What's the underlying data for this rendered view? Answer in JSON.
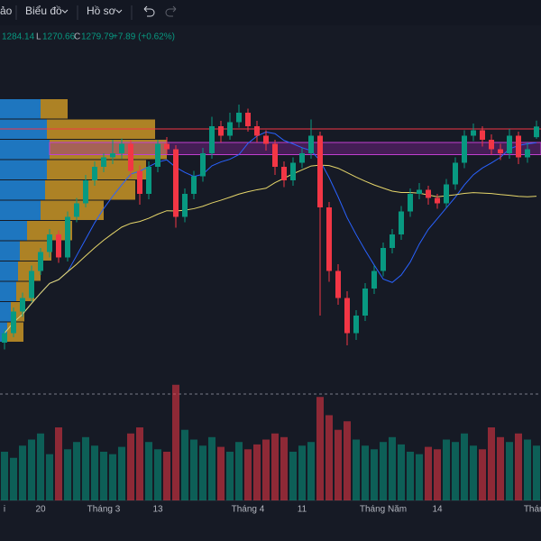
{
  "toolbar": {
    "items": [
      "ảo",
      "Biểu đồ",
      "Hồ sơ"
    ]
  },
  "header": {
    "h": "1284.14",
    "l_label": "L",
    "l": "1270.66",
    "c_label": "C",
    "c": "1279.79",
    "change": "+7.89 (+0.62%)"
  },
  "chart_data": {
    "type": "candlestick",
    "categories": [
      "i",
      null,
      null,
      null,
      "20",
      null,
      null,
      null,
      null,
      null,
      null,
      "Tháng 3",
      null,
      null,
      null,
      null,
      null,
      "13",
      null,
      null,
      null,
      null,
      null,
      null,
      null,
      null,
      null,
      "Tháng 4",
      null,
      null,
      null,
      null,
      null,
      "11",
      null,
      null,
      null,
      null,
      null,
      null,
      null,
      null,
      "Tháng Năm",
      null,
      null,
      null,
      null,
      null,
      "14",
      null,
      null,
      null,
      null,
      null,
      null,
      null,
      null,
      null,
      null,
      "Tháng"
    ],
    "ohlc": [
      [
        1120,
        1130,
        1115,
        1127
      ],
      [
        1127,
        1146,
        1124,
        1143
      ],
      [
        1143,
        1157,
        1139,
        1153
      ],
      [
        1153,
        1177,
        1150,
        1173
      ],
      [
        1173,
        1190,
        1170,
        1187
      ],
      [
        1187,
        1204,
        1183,
        1200
      ],
      [
        1200,
        1203,
        1179,
        1183
      ],
      [
        1183,
        1217,
        1180,
        1213
      ],
      [
        1213,
        1227,
        1209,
        1223
      ],
      [
        1223,
        1244,
        1220,
        1240
      ],
      [
        1240,
        1254,
        1236,
        1250
      ],
      [
        1250,
        1260,
        1246,
        1257
      ],
      [
        1257,
        1270,
        1252,
        1260
      ],
      [
        1260,
        1271,
        1256,
        1267
      ],
      [
        1267,
        1270,
        1242,
        1247
      ],
      [
        1247,
        1251,
        1222,
        1230
      ],
      [
        1230,
        1254,
        1226,
        1250
      ],
      [
        1250,
        1270,
        1246,
        1267
      ],
      [
        1267,
        1272,
        1259,
        1263
      ],
      [
        1263,
        1266,
        1205,
        1213
      ],
      [
        1213,
        1234,
        1209,
        1230
      ],
      [
        1230,
        1247,
        1226,
        1243
      ],
      [
        1243,
        1264,
        1239,
        1260
      ],
      [
        1260,
        1287,
        1256,
        1280
      ],
      [
        1280,
        1284,
        1268,
        1273
      ],
      [
        1273,
        1290,
        1270,
        1283
      ],
      [
        1283,
        1296,
        1279,
        1290
      ],
      [
        1290,
        1293,
        1276,
        1280
      ],
      [
        1280,
        1284,
        1268,
        1273
      ],
      [
        1273,
        1277,
        1262,
        1267
      ],
      [
        1267,
        1270,
        1244,
        1250
      ],
      [
        1250,
        1254,
        1235,
        1240
      ],
      [
        1240,
        1257,
        1236,
        1253
      ],
      [
        1253,
        1264,
        1249,
        1260
      ],
      [
        1260,
        1285,
        1256,
        1273
      ],
      [
        1273,
        1276,
        1140,
        1220
      ],
      [
        1220,
        1224,
        1165,
        1173
      ],
      [
        1173,
        1178,
        1148,
        1153
      ],
      [
        1153,
        1158,
        1118,
        1127
      ],
      [
        1127,
        1144,
        1122,
        1140
      ],
      [
        1140,
        1164,
        1136,
        1160
      ],
      [
        1160,
        1177,
        1156,
        1173
      ],
      [
        1173,
        1194,
        1169,
        1190
      ],
      [
        1190,
        1204,
        1186,
        1200
      ],
      [
        1200,
        1221,
        1196,
        1217
      ],
      [
        1217,
        1234,
        1213,
        1230
      ],
      [
        1230,
        1238,
        1226,
        1233
      ],
      [
        1233,
        1236,
        1222,
        1227
      ],
      [
        1227,
        1230,
        1219,
        1223
      ],
      [
        1223,
        1241,
        1220,
        1237
      ],
      [
        1237,
        1257,
        1233,
        1253
      ],
      [
        1253,
        1277,
        1249,
        1273
      ],
      [
        1273,
        1282,
        1269,
        1277
      ],
      [
        1277,
        1280,
        1265,
        1270
      ],
      [
        1270,
        1274,
        1259,
        1263
      ],
      [
        1263,
        1267,
        1255,
        1260
      ],
      [
        1260,
        1278,
        1256,
        1273
      ],
      [
        1273,
        1276,
        1252,
        1257
      ],
      [
        1257,
        1268,
        1253,
        1263
      ],
      [
        1271.9,
        1284.14,
        1270.66,
        1279.79
      ]
    ],
    "volume": [
      40,
      35,
      45,
      50,
      55,
      38,
      60,
      42,
      48,
      52,
      45,
      40,
      38,
      44,
      55,
      60,
      48,
      42,
      40,
      95,
      58,
      50,
      45,
      52,
      44,
      40,
      48,
      42,
      46,
      50,
      55,
      52,
      40,
      45,
      48,
      85,
      70,
      58,
      65,
      50,
      45,
      42,
      48,
      52,
      46,
      40,
      38,
      44,
      42,
      50,
      48,
      55,
      45,
      42,
      60,
      52,
      48,
      55,
      50,
      45
    ],
    "ylim": [
      1100,
      1320
    ],
    "volume_lim": [
      0,
      100
    ],
    "up_color": "#089981",
    "down_color": "#f23645",
    "levels": {
      "resistance": 1278,
      "zone": [
        1268,
        1259
      ]
    },
    "profile": {
      "bins": [
        1300,
        1285,
        1270,
        1255,
        1240,
        1225,
        1210,
        1195,
        1180,
        1165,
        1150,
        1135,
        1120
      ],
      "up": [
        45,
        52,
        55,
        52,
        50,
        45,
        30,
        22,
        20,
        18,
        12,
        8
      ],
      "down": [
        30,
        120,
        130,
        110,
        100,
        70,
        50,
        35,
        25,
        20,
        15,
        18
      ],
      "xlim": [
        0,
        200
      ]
    }
  }
}
